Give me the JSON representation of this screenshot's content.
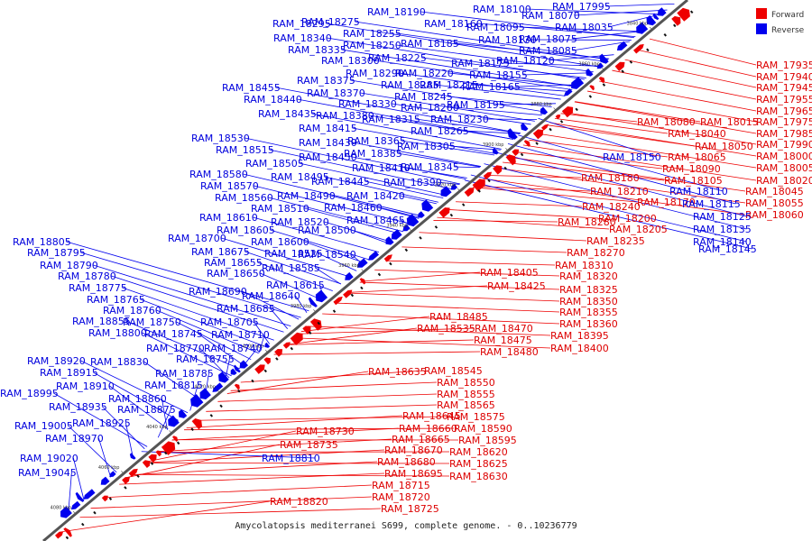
{
  "colors": {
    "forward": "#ee0000",
    "reverse": "#0000ee",
    "backbone": "#555555"
  },
  "legend": [
    {
      "label": "Forward",
      "color": "#ee0000"
    },
    {
      "label": "Reverse",
      "color": "#0000ee"
    }
  ],
  "caption": "Amycolatopsis mediterranei S699, complete genome. - 0..10236779",
  "ticks": [
    "3840 kbp",
    "3860 kbp",
    "3880 kbp",
    "3900 kbp",
    "3920 kbp",
    "3940 kbp",
    "3960 kbp",
    "3980 kbp",
    "4000 kbp",
    "4020 kbp",
    "4040 kbp",
    "4060 kbp",
    "4080 kbp"
  ],
  "forward_labels": [
    "RAM_17935",
    "RAM_17940",
    "RAM_17945",
    "RAM_17955",
    "RAM_17965",
    "RAM_17975",
    "RAM_17985",
    "RAM_17990",
    "RAM_18000",
    "RAM_18005",
    "RAM_18020",
    "RAM_18045",
    "RAM_18055",
    "RAM_18060",
    "RAM_18080",
    "RAM_18015",
    "RAM_18040",
    "RAM_18050",
    "RAM_18065",
    "RAM_18090",
    "RAM_18180",
    "RAM_18105",
    "RAM_18210",
    "RAM_18170",
    "RAM_18240",
    "RAM_18200",
    "RAM_18280",
    "RAM_18205",
    "RAM_18235",
    "RAM_18270",
    "RAM_18310",
    "RAM_18405",
    "RAM_18320",
    "RAM_18425",
    "RAM_18325",
    "RAM_18350",
    "RAM_18355",
    "RAM_18360",
    "RAM_18485",
    "RAM_18470",
    "RAM_18535",
    "RAM_18475",
    "RAM_18395",
    "RAM_18480",
    "RAM_18400",
    "RAM_18545",
    "RAM_18635",
    "RAM_18550",
    "RAM_18555",
    "RAM_18565",
    "RAM_18645",
    "RAM_18575",
    "RAM_18660",
    "RAM_18590",
    "RAM_18665",
    "RAM_18595",
    "RAM_18730",
    "RAM_18670",
    "RAM_18620",
    "RAM_18735",
    "RAM_18680",
    "RAM_18625",
    "RAM_18695",
    "RAM_18630",
    "RAM_18715",
    "RAM_18720",
    "RAM_18725",
    "RAM_18820"
  ],
  "reverse_labels": [
    "RAM_18100",
    "RAM_17995",
    "RAM_18295",
    "RAM_18190",
    "RAM_18070",
    "RAM_18275",
    "RAM_18160",
    "RAM_18095",
    "RAM_18035",
    "RAM_18340",
    "RAM_18255",
    "RAM_18130",
    "RAM_18075",
    "RAM_18250",
    "RAM_18185",
    "RAM_18085",
    "RAM_18335",
    "RAM_18225",
    "RAM_18300",
    "RAM_18175",
    "RAM_18120",
    "RAM_18290",
    "RAM_18220",
    "RAM_18155",
    "RAM_18375",
    "RAM_18285",
    "RAM_18215",
    "RAM_18165",
    "RAM_18455",
    "RAM_18370",
    "RAM_18245",
    "RAM_18440",
    "RAM_18330",
    "RAM_18260",
    "RAM_18195",
    "RAM_18435",
    "RAM_18380",
    "RAM_18315",
    "RAM_18230",
    "RAM_18415",
    "RAM_18265",
    "RAM_18530",
    "RAM_18430",
    "RAM_18365",
    "RAM_18305",
    "RAM_18515",
    "RAM_18450",
    "RAM_18385",
    "RAM_18505",
    "RAM_18345",
    "RAM_18580",
    "RAM_18495",
    "RAM_18410",
    "RAM_18445",
    "RAM_18390",
    "RAM_18570",
    "RAM_18490",
    "RAM_18420",
    "RAM_18560",
    "RAM_18460",
    "RAM_18510",
    "RAM_18610",
    "RAM_18520",
    "RAM_18465",
    "RAM_18605",
    "RAM_18500",
    "RAM_18700",
    "RAM_18600",
    "RAM_18525",
    "RAM_18540",
    "RAM_18675",
    "RAM_18655",
    "RAM_18585",
    "RAM_18805",
    "RAM_18650",
    "RAM_18615",
    "RAM_18795",
    "RAM_18690",
    "RAM_18640",
    "RAM_18790",
    "RAM_18780",
    "RAM_18685",
    "RAM_18775",
    "RAM_18765",
    "RAM_18705",
    "RAM_18760",
    "RAM_18710",
    "RAM_18855",
    "RAM_18750",
    "RAM_18800",
    "RAM_18745",
    "RAM_18770",
    "RAM_18740",
    "RAM_18830",
    "RAM_18755",
    "RAM_18920",
    "RAM_18785",
    "RAM_18915",
    "RAM_18815",
    "RAM_18910",
    "RAM_18995",
    "RAM_18860",
    "RAM_18935",
    "RAM_18875",
    "RAM_18925",
    "RAM_19005",
    "RAM_18970",
    "RAM_19020",
    "RAM_19045",
    "RAM_18150",
    "RAM_18110",
    "RAM_18115",
    "RAM_18125",
    "RAM_18135",
    "RAM_18140",
    "RAM_18145",
    "RAM_18810"
  ]
}
